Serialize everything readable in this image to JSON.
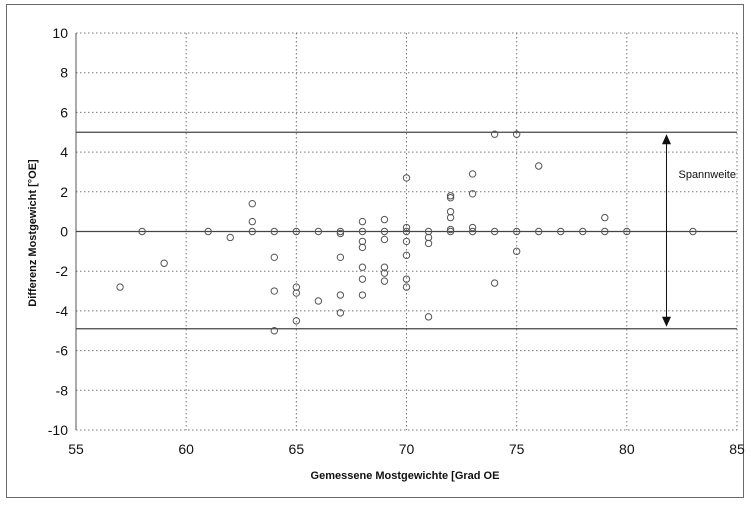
{
  "chart_data": {
    "type": "scatter",
    "title": "",
    "xlabel": "Gemessene Mostgewichte [Grad OE",
    "ylabel": "Differenz Mostgewicht [°OE]",
    "xlim": [
      55,
      85
    ],
    "ylim": [
      -10,
      10
    ],
    "x_ticks": [
      "55",
      "60",
      "65",
      "70",
      "75",
      "80",
      "85"
    ],
    "y_ticks": [
      "10",
      "8",
      "6",
      "4",
      "2",
      "0",
      "-2",
      "-4",
      "-6",
      "-8",
      "-10"
    ],
    "x_tick_values": [
      55,
      60,
      65,
      70,
      75,
      80,
      85
    ],
    "y_tick_values": [
      10,
      8,
      6,
      4,
      2,
      0,
      -2,
      -4,
      -6,
      -8,
      -10
    ],
    "grid": true,
    "grid_style": "dotted",
    "reference_lines": [
      {
        "y": 5
      },
      {
        "y": 0
      },
      {
        "y": -4.9
      }
    ],
    "annotation": {
      "text": "Spannweite",
      "arrow_x": 81.8,
      "arrow_from": 4.9,
      "arrow_to": -4.8
    },
    "marker": "open-circle",
    "marker_color": "#555555",
    "points": [
      [
        57,
        -2.8
      ],
      [
        58,
        0
      ],
      [
        59,
        -1.6
      ],
      [
        61,
        0
      ],
      [
        62,
        -0.3
      ],
      [
        63,
        1.4
      ],
      [
        63,
        0.5
      ],
      [
        63,
        0
      ],
      [
        64,
        0
      ],
      [
        64,
        -1.3
      ],
      [
        64,
        -3
      ],
      [
        64,
        -5
      ],
      [
        65,
        0
      ],
      [
        65,
        -2.8
      ],
      [
        65,
        -3.1
      ],
      [
        65,
        -4.5
      ],
      [
        66,
        0
      ],
      [
        66,
        -3.5
      ],
      [
        67,
        0
      ],
      [
        67,
        -0.1
      ],
      [
        67,
        -1.3
      ],
      [
        67,
        -3.2
      ],
      [
        67,
        -4.1
      ],
      [
        68,
        0.5
      ],
      [
        68,
        0
      ],
      [
        68,
        -0.5
      ],
      [
        68,
        -0.8
      ],
      [
        68,
        -1.8
      ],
      [
        68,
        -2.4
      ],
      [
        68,
        -3.2
      ],
      [
        69,
        0.6
      ],
      [
        69,
        0
      ],
      [
        69,
        -0.4
      ],
      [
        69,
        -1.8
      ],
      [
        69,
        -2.1
      ],
      [
        69,
        -2.5
      ],
      [
        70,
        2.7
      ],
      [
        70,
        0.2
      ],
      [
        70,
        0
      ],
      [
        70,
        -0.5
      ],
      [
        70,
        -1.2
      ],
      [
        70,
        -2.4
      ],
      [
        70,
        -2.8
      ],
      [
        71,
        0
      ],
      [
        71,
        -0.3
      ],
      [
        71,
        -0.6
      ],
      [
        71,
        -4.3
      ],
      [
        72,
        1.8
      ],
      [
        72,
        1.7
      ],
      [
        72,
        1
      ],
      [
        72,
        0.7
      ],
      [
        72,
        0.1
      ],
      [
        72,
        0
      ],
      [
        73,
        2.9
      ],
      [
        73,
        1.9
      ],
      [
        73,
        0.2
      ],
      [
        73,
        0
      ],
      [
        74,
        4.9
      ],
      [
        74,
        0
      ],
      [
        74,
        -2.6
      ],
      [
        75,
        4.9
      ],
      [
        75,
        0
      ],
      [
        75,
        -1
      ],
      [
        76,
        3.3
      ],
      [
        76,
        0
      ],
      [
        77,
        0
      ],
      [
        78,
        0
      ],
      [
        79,
        0.7
      ],
      [
        79,
        0
      ],
      [
        80,
        0
      ],
      [
        83,
        0
      ]
    ]
  }
}
